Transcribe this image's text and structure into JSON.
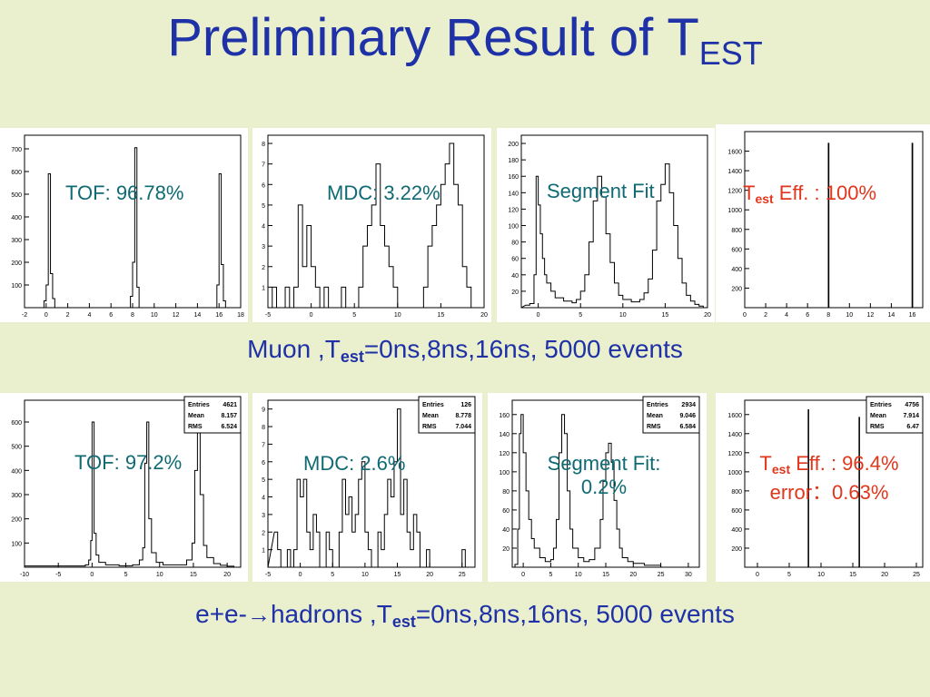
{
  "title": {
    "main": "Preliminary Result of T",
    "sub": "EST"
  },
  "row1_caption": {
    "pre": "Muon ,T",
    "sub": "est",
    "post": "=0ns,8ns,16ns, 5000 events"
  },
  "row2_caption": {
    "pre": "e+e-",
    "arrow": "→",
    "mid": "hadrons ,T",
    "sub": "est",
    "post": "=0ns,8ns,16ns, 5000 events"
  },
  "notes": {
    "tof_muon": "TOF: 96.78%",
    "mdc_muon": "MDC: 3.22%",
    "seg_muon": "Segment  Fit",
    "test_muon_T": "T",
    "test_muon_sub": "est",
    "test_muon_rest": " Eff. : 100%",
    "tof_had": "TOF: 97.2%",
    "mdc_had": "MDC: 2.6%",
    "seg_had_1": "Segment  Fit:",
    "seg_had_2": "0.2%",
    "test_had_T": "T",
    "test_had_sub": "est",
    "test_had_rest": " Eff. : 96.4%",
    "test_had_err": "error：0.63%"
  },
  "colors": {
    "title": "#1f31a6",
    "teal_text": "#0f6a73",
    "red_text": "#e0361c",
    "background": "#eaf0ce"
  },
  "chart_data": [
    {
      "type": "bar",
      "id": "h1",
      "xlim": [
        -2,
        18
      ],
      "ylim": [
        0,
        760
      ],
      "xticks": [
        -2,
        0,
        2,
        4,
        6,
        8,
        10,
        12,
        14,
        16,
        18
      ],
      "yticks": [
        100,
        200,
        300,
        400,
        500,
        600,
        700
      ],
      "bins": [
        [
          -0.4,
          0
        ],
        [
          -0.2,
          30
        ],
        [
          0,
          100
        ],
        [
          0.2,
          590
        ],
        [
          0.4,
          150
        ],
        [
          0.6,
          40
        ],
        [
          0.8,
          0
        ],
        [
          7.6,
          0
        ],
        [
          7.8,
          50
        ],
        [
          8,
          200
        ],
        [
          8.2,
          705
        ],
        [
          8.4,
          90
        ],
        [
          8.6,
          0
        ],
        [
          15.6,
          0
        ],
        [
          15.8,
          100
        ],
        [
          16,
          590
        ],
        [
          16.2,
          190
        ],
        [
          16.4,
          30
        ],
        [
          16.6,
          0
        ]
      ]
    },
    {
      "type": "bar",
      "id": "h2",
      "xlim": [
        -5,
        20
      ],
      "ylim": [
        0,
        8.4
      ],
      "xticks": [
        -5,
        0,
        5,
        10,
        15,
        20
      ],
      "yticks": [
        1,
        2,
        3,
        4,
        5,
        6,
        7,
        8
      ],
      "bins": [
        [
          -5,
          0
        ],
        [
          -4.5,
          1
        ],
        [
          -4,
          0
        ],
        [
          -3,
          1
        ],
        [
          -2.5,
          0
        ],
        [
          -2,
          1
        ],
        [
          -1.5,
          5
        ],
        [
          -1,
          2
        ],
        [
          -0.5,
          4
        ],
        [
          0,
          2
        ],
        [
          0.5,
          1
        ],
        [
          1,
          0
        ],
        [
          1.5,
          1
        ],
        [
          2,
          0
        ],
        [
          3.5,
          1
        ],
        [
          4,
          0
        ],
        [
          5.5,
          1
        ],
        [
          6,
          3
        ],
        [
          6.5,
          4
        ],
        [
          7,
          5
        ],
        [
          7.5,
          7
        ],
        [
          8,
          4
        ],
        [
          8.5,
          3
        ],
        [
          9,
          2
        ],
        [
          9.5,
          1
        ],
        [
          10,
          0
        ],
        [
          13,
          1
        ],
        [
          13.5,
          3
        ],
        [
          14,
          4
        ],
        [
          14.5,
          5
        ],
        [
          15,
          6
        ],
        [
          15.5,
          7
        ],
        [
          16,
          8
        ],
        [
          16.5,
          6
        ],
        [
          17,
          5
        ],
        [
          17.5,
          2
        ],
        [
          18,
          1
        ],
        [
          18.5,
          0
        ]
      ]
    },
    {
      "type": "bar",
      "id": "h3",
      "xlim": [
        -2,
        20
      ],
      "ylim": [
        0,
        210
      ],
      "xticks": [
        0,
        5,
        10,
        15,
        20
      ],
      "yticks": [
        20,
        40,
        60,
        80,
        100,
        120,
        140,
        160,
        180,
        200
      ],
      "bins": [
        [
          -1.5,
          3
        ],
        [
          -1,
          5
        ],
        [
          -0.5,
          40
        ],
        [
          -0.25,
          160
        ],
        [
          0,
          125
        ],
        [
          0.25,
          90
        ],
        [
          0.5,
          60
        ],
        [
          0.75,
          40
        ],
        [
          1,
          30
        ],
        [
          1.5,
          20
        ],
        [
          2,
          12
        ],
        [
          3,
          8
        ],
        [
          4,
          6
        ],
        [
          4.5,
          10
        ],
        [
          5,
          20
        ],
        [
          5.5,
          40
        ],
        [
          6,
          80
        ],
        [
          6.5,
          130
        ],
        [
          7,
          160
        ],
        [
          7.5,
          135
        ],
        [
          8,
          90
        ],
        [
          8.5,
          55
        ],
        [
          9,
          30
        ],
        [
          9.5,
          15
        ],
        [
          10,
          10
        ],
        [
          11,
          7
        ],
        [
          12,
          10
        ],
        [
          12.5,
          18
        ],
        [
          13,
          35
        ],
        [
          13.5,
          70
        ],
        [
          14,
          130
        ],
        [
          14.5,
          150
        ],
        [
          15,
          175
        ],
        [
          15.5,
          140
        ],
        [
          16,
          100
        ],
        [
          16.5,
          60
        ],
        [
          17,
          30
        ],
        [
          17.5,
          15
        ],
        [
          18,
          8
        ],
        [
          18.5,
          4
        ],
        [
          19,
          2
        ],
        [
          19.5,
          0
        ]
      ]
    },
    {
      "type": "bar",
      "id": "h4",
      "xlim": [
        0,
        17
      ],
      "ylim": [
        0,
        1800
      ],
      "xticks": [
        0,
        2,
        4,
        6,
        8,
        10,
        12,
        14,
        16
      ],
      "yticks": [
        200,
        400,
        600,
        800,
        1000,
        1200,
        1400,
        1600
      ],
      "bins": [
        [
          7.92,
          0
        ],
        [
          7.98,
          1680
        ],
        [
          8.04,
          0
        ],
        [
          15.92,
          0
        ],
        [
          15.98,
          1680
        ],
        [
          16.04,
          0
        ]
      ]
    },
    {
      "type": "bar",
      "id": "h5",
      "xlim": [
        -10,
        22
      ],
      "ylim": [
        0,
        690
      ],
      "xticks": [
        -10,
        -5,
        0,
        5,
        10,
        15,
        20
      ],
      "yticks": [
        100,
        200,
        300,
        400,
        500,
        600
      ],
      "stats": {
        "Entries": "4621",
        "Mean": "8.157",
        "RMS": "6.524"
      },
      "bins": [
        [
          -10,
          5
        ],
        [
          -1,
          10
        ],
        [
          -0.5,
          30
        ],
        [
          -0.2,
          110
        ],
        [
          0,
          600
        ],
        [
          0.3,
          140
        ],
        [
          0.6,
          50
        ],
        [
          1,
          20
        ],
        [
          2,
          10
        ],
        [
          4,
          6
        ],
        [
          6,
          10
        ],
        [
          7,
          30
        ],
        [
          7.5,
          80
        ],
        [
          7.8,
          430
        ],
        [
          8.1,
          600
        ],
        [
          8.4,
          200
        ],
        [
          8.8,
          60
        ],
        [
          9.5,
          20
        ],
        [
          10.5,
          10
        ],
        [
          13,
          10
        ],
        [
          14,
          30
        ],
        [
          14.8,
          100
        ],
        [
          15.2,
          400
        ],
        [
          15.6,
          640
        ],
        [
          16,
          300
        ],
        [
          16.5,
          90
        ],
        [
          17,
          40
        ],
        [
          18,
          15
        ],
        [
          19,
          8
        ],
        [
          20,
          4
        ],
        [
          21,
          0
        ]
      ]
    },
    {
      "type": "bar",
      "id": "h6",
      "xlim": [
        -5,
        27
      ],
      "ylim": [
        0,
        9.5
      ],
      "xticks": [
        -5,
        0,
        5,
        10,
        15,
        20,
        25
      ],
      "yticks": [
        1,
        2,
        3,
        4,
        5,
        6,
        7,
        8,
        9
      ],
      "stats": {
        "Entries": "126",
        "Mean": "8.778",
        "RMS": "7.044"
      },
      "bins": [
        [
          -4,
          2
        ],
        [
          -3.5,
          1
        ],
        [
          -3,
          0
        ],
        [
          -2,
          1
        ],
        [
          -1.5,
          0
        ],
        [
          -1,
          1
        ],
        [
          -0.5,
          5
        ],
        [
          0,
          4
        ],
        [
          0.5,
          5
        ],
        [
          1,
          2
        ],
        [
          1.5,
          1
        ],
        [
          2,
          3
        ],
        [
          2.5,
          2
        ],
        [
          3,
          0
        ],
        [
          4,
          2
        ],
        [
          4.5,
          1
        ],
        [
          5,
          0
        ],
        [
          6,
          2
        ],
        [
          6.5,
          5
        ],
        [
          7,
          3
        ],
        [
          7.5,
          4
        ],
        [
          8,
          2
        ],
        [
          8.5,
          3
        ],
        [
          9,
          5
        ],
        [
          9.5,
          6
        ],
        [
          10,
          2
        ],
        [
          10.5,
          1
        ],
        [
          11,
          0
        ],
        [
          12,
          2
        ],
        [
          12.5,
          1
        ],
        [
          13,
          3
        ],
        [
          13.5,
          5
        ],
        [
          14,
          4
        ],
        [
          14.5,
          6
        ],
        [
          15,
          9
        ],
        [
          15.5,
          3
        ],
        [
          16,
          5
        ],
        [
          16.5,
          2
        ],
        [
          17,
          1
        ],
        [
          17.5,
          3
        ],
        [
          18,
          2
        ],
        [
          18.5,
          0
        ],
        [
          19.5,
          1
        ],
        [
          20,
          0
        ],
        [
          25,
          1
        ],
        [
          25.5,
          0
        ]
      ]
    },
    {
      "type": "bar",
      "id": "h7",
      "xlim": [
        -2,
        32
      ],
      "ylim": [
        0,
        175
      ],
      "xticks": [
        0,
        5,
        10,
        15,
        20,
        25,
        30
      ],
      "yticks": [
        20,
        40,
        60,
        80,
        100,
        120,
        140,
        160
      ],
      "stats": {
        "Entries": "2934",
        "Mean": "9.046",
        "RMS": "6.584"
      },
      "bins": [
        [
          -2,
          0
        ],
        [
          -1.5,
          3
        ],
        [
          -1,
          40
        ],
        [
          -0.7,
          140
        ],
        [
          -0.4,
          160
        ],
        [
          0,
          120
        ],
        [
          0.5,
          80
        ],
        [
          1,
          50
        ],
        [
          1.5,
          30
        ],
        [
          2,
          20
        ],
        [
          3,
          10
        ],
        [
          4,
          6
        ],
        [
          5,
          8
        ],
        [
          5.5,
          20
        ],
        [
          6,
          50
        ],
        [
          6.5,
          120
        ],
        [
          7,
          160
        ],
        [
          7.5,
          140
        ],
        [
          8,
          80
        ],
        [
          8.5,
          40
        ],
        [
          9,
          20
        ],
        [
          10,
          10
        ],
        [
          11,
          6
        ],
        [
          12,
          8
        ],
        [
          13,
          20
        ],
        [
          14,
          50
        ],
        [
          14.5,
          90
        ],
        [
          15,
          120
        ],
        [
          15.5,
          130
        ],
        [
          16,
          110
        ],
        [
          16.5,
          70
        ],
        [
          17,
          40
        ],
        [
          17.5,
          20
        ],
        [
          18,
          10
        ],
        [
          19,
          6
        ],
        [
          20,
          4
        ],
        [
          22,
          2
        ],
        [
          25,
          0
        ]
      ]
    },
    {
      "type": "bar",
      "id": "h8",
      "xlim": [
        -2,
        26
      ],
      "ylim": [
        0,
        1750
      ],
      "xticks": [
        0,
        5,
        10,
        15,
        20,
        25
      ],
      "yticks": [
        200,
        400,
        600,
        800,
        1000,
        1200,
        1400,
        1600
      ],
      "stats": {
        "Entries": "4756",
        "Mean": "7.914",
        "RMS": "6.47"
      },
      "bins": [
        [
          7.92,
          0
        ],
        [
          7.98,
          1650
        ],
        [
          8.06,
          0
        ],
        [
          15.92,
          0
        ],
        [
          15.98,
          1570
        ],
        [
          16.06,
          0
        ]
      ]
    }
  ]
}
